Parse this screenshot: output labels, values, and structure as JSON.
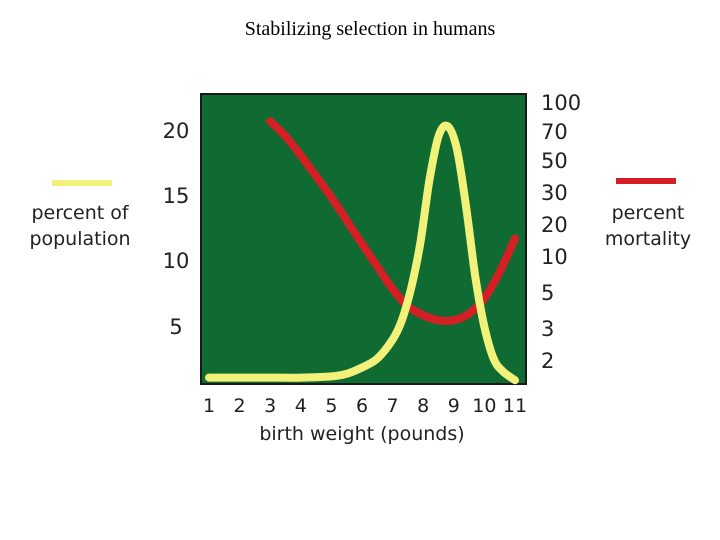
{
  "title": "Stabilizing selection in humans",
  "left_legend": {
    "line1": "percent of",
    "line2": "population",
    "color": "#F2F27A"
  },
  "right_legend": {
    "line1": "percent",
    "line2": "mortality",
    "color": "#D41F25"
  },
  "chart_data": {
    "type": "line",
    "title": "Stabilizing selection in humans",
    "xlabel": "birth weight (pounds)",
    "x_ticks": [
      "1",
      "2",
      "3",
      "4",
      "5",
      "6",
      "7",
      "8",
      "9",
      "10",
      "11"
    ],
    "xlim": [
      1,
      11
    ],
    "left_axis": {
      "label": "percent of population",
      "ticks": [
        "20",
        "15",
        "10",
        "5"
      ],
      "ylim": [
        0,
        23
      ]
    },
    "right_axis": {
      "label": "percent mortality",
      "scale": "log",
      "ticks": [
        "100",
        "70",
        "50",
        "30",
        "20",
        "10",
        "5",
        "3",
        "2"
      ]
    },
    "background": "#0F6B31",
    "series": [
      {
        "name": "percent of population",
        "axis": "left",
        "color": "#F2F27A",
        "x": [
          1,
          2,
          3,
          4,
          5,
          5.5,
          6,
          6.5,
          7,
          7.3,
          7.6,
          7.9,
          8.2,
          8.5,
          8.8,
          9.1,
          9.4,
          9.7,
          10,
          10.3,
          10.6,
          11
        ],
        "y": [
          0.5,
          0.5,
          0.5,
          0.5,
          0.6,
          0.8,
          1.3,
          2,
          3.5,
          5,
          7.5,
          11,
          16,
          19.5,
          20.3,
          18.5,
          14,
          8.5,
          4.5,
          2,
          1,
          0.3
        ]
      },
      {
        "name": "percent mortality",
        "axis": "right",
        "color": "#D41F25",
        "x": [
          3,
          3.5,
          4,
          4.5,
          5,
          5.5,
          6,
          6.5,
          7,
          7.5,
          8,
          8.5,
          9,
          9.5,
          10,
          10.5,
          11
        ],
        "y": [
          75,
          60,
          45,
          33,
          24,
          17,
          12,
          8.5,
          6,
          4.6,
          4,
          3.7,
          3.7,
          4.1,
          5.2,
          7.8,
          13
        ]
      }
    ]
  }
}
